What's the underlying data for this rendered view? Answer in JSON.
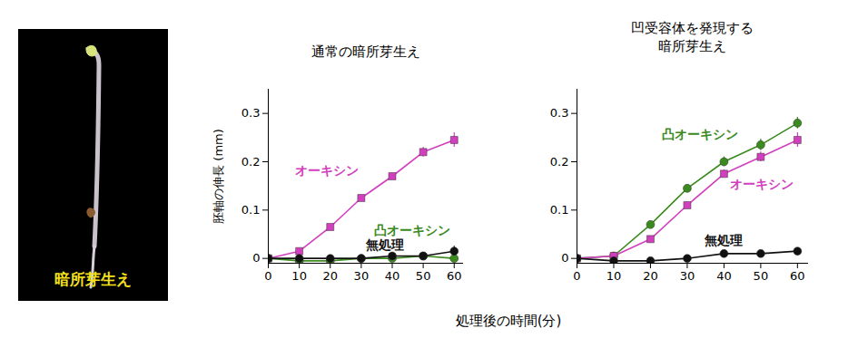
{
  "image_label": "暗所芽生え",
  "shared_xlabel": "処理後の時間(分)",
  "chart_data": [
    {
      "type": "line",
      "title": "通常の暗所芽生え",
      "ylabel": "胚軸の伸長 (mm)",
      "x": [
        0,
        10,
        20,
        30,
        40,
        50,
        60
      ],
      "xlim": [
        0,
        63
      ],
      "xticks": [
        0,
        10,
        20,
        30,
        40,
        50,
        60
      ],
      "ylim": [
        -0.01,
        0.35
      ],
      "yticks": [
        0,
        0.1,
        0.2,
        0.3
      ],
      "series": [
        {
          "name": "オーキシン",
          "color": "#d23fbe",
          "marker": "square",
          "values": [
            0,
            0.015,
            0.065,
            0.125,
            0.17,
            0.22,
            0.245
          ],
          "errors": [
            0,
            0.004,
            0.004,
            0.005,
            0.006,
            0.01,
            0.015
          ]
        },
        {
          "name": "凸オーキシン",
          "color": "#3a8a1e",
          "marker": "circle",
          "values": [
            0,
            -0.005,
            -0.005,
            0,
            0,
            0.005,
            0
          ],
          "errors": [
            0,
            0.003,
            0.003,
            0.003,
            0.003,
            0.004,
            0.004
          ]
        },
        {
          "name": "無処理",
          "color": "#111111",
          "marker": "circle",
          "values": [
            0,
            0,
            0,
            0,
            0.005,
            0.005,
            0.015
          ],
          "errors": [
            0,
            0.003,
            0.003,
            0.003,
            0.004,
            0.005,
            0.01
          ]
        }
      ]
    },
    {
      "type": "line",
      "title": "凹受容体を発現する\n暗所芽生え",
      "x": [
        0,
        10,
        20,
        30,
        40,
        50,
        60
      ],
      "xlim": [
        0,
        63
      ],
      "xticks": [
        0,
        10,
        20,
        30,
        40,
        50,
        60
      ],
      "ylim": [
        -0.01,
        0.35
      ],
      "yticks": [
        0,
        0.1,
        0.2,
        0.3
      ],
      "series": [
        {
          "name": "凸オーキシン",
          "color": "#3a8a1e",
          "marker": "circle",
          "values": [
            0,
            0.005,
            0.07,
            0.145,
            0.2,
            0.235,
            0.28
          ],
          "errors": [
            0,
            0.004,
            0.006,
            0.007,
            0.01,
            0.012,
            0.012
          ]
        },
        {
          "name": "オーキシン",
          "color": "#d23fbe",
          "marker": "square",
          "values": [
            0,
            0.005,
            0.04,
            0.11,
            0.175,
            0.21,
            0.245
          ],
          "errors": [
            0,
            0.004,
            0.005,
            0.006,
            0.008,
            0.01,
            0.015
          ]
        },
        {
          "name": "無処理",
          "color": "#111111",
          "marker": "circle",
          "values": [
            0,
            -0.005,
            -0.005,
            0,
            0.01,
            0.01,
            0.015
          ],
          "errors": [
            0,
            0.003,
            0.003,
            0.003,
            0.004,
            0.004,
            0.005
          ]
        }
      ]
    }
  ]
}
